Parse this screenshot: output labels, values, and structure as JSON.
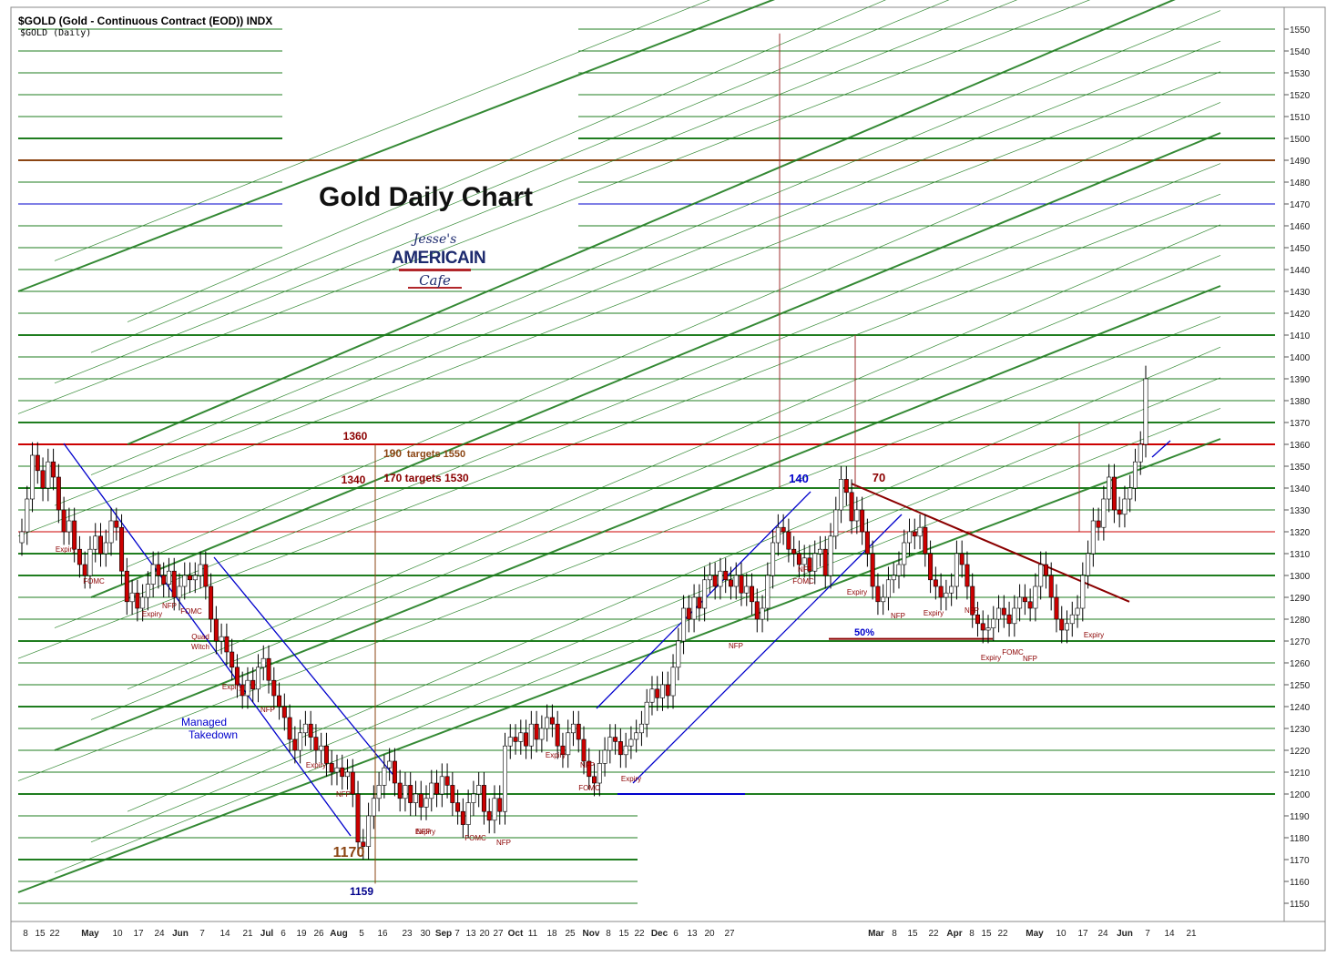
{
  "header": {
    "symbol_line": "$GOLD (Gold - Continuous Contract (EOD)) INDX",
    "sub_line": "$GOLD (Daily)"
  },
  "logo": {
    "line1": "Jesse's",
    "line2": "AMERICAIN",
    "line3": "Cafe"
  },
  "colors": {
    "up_candle": "#ffffff",
    "down_candle": "#cc0000",
    "green_lines": "#1f7d1f",
    "red_lines": "#cc0000",
    "blue_lines": "#0000cc",
    "brown_lines": "#8b4513",
    "maroon": "#8b0000"
  },
  "chart_data": {
    "type": "candlestick",
    "title": "Gold Daily Chart",
    "ylim": [
      1140,
      1560
    ],
    "yticks": [
      1150,
      1160,
      1170,
      1180,
      1190,
      1200,
      1210,
      1220,
      1230,
      1240,
      1250,
      1260,
      1270,
      1280,
      1290,
      1300,
      1310,
      1320,
      1330,
      1340,
      1350,
      1360,
      1370,
      1380,
      1390,
      1400,
      1410,
      1420,
      1430,
      1440,
      1450,
      1460,
      1470,
      1480,
      1490,
      1500,
      1510,
      1520,
      1530,
      1540,
      1550
    ],
    "xticks": [
      {
        "label": "8",
        "bold": false
      },
      {
        "label": "15",
        "bold": false
      },
      {
        "label": "22",
        "bold": false
      },
      {
        "label": "May",
        "bold": true
      },
      {
        "label": "10",
        "bold": false
      },
      {
        "label": "17",
        "bold": false
      },
      {
        "label": "24",
        "bold": false
      },
      {
        "label": "Jun",
        "bold": true
      },
      {
        "label": "7",
        "bold": false
      },
      {
        "label": "14",
        "bold": false
      },
      {
        "label": "21",
        "bold": false
      },
      {
        "label": "Jul",
        "bold": true
      },
      {
        "label": "6",
        "bold": false
      },
      {
        "label": "19",
        "bold": false
      },
      {
        "label": "26",
        "bold": false
      },
      {
        "label": "Aug",
        "bold": true
      },
      {
        "label": "5",
        "bold": false
      },
      {
        "label": "16",
        "bold": false
      },
      {
        "label": "23",
        "bold": false
      },
      {
        "label": "30",
        "bold": false
      },
      {
        "label": "Sep",
        "bold": true
      },
      {
        "label": "7",
        "bold": false
      },
      {
        "label": "13",
        "bold": false
      },
      {
        "label": "20",
        "bold": false
      },
      {
        "label": "27",
        "bold": false
      },
      {
        "label": "Oct",
        "bold": true
      },
      {
        "label": "11",
        "bold": false
      },
      {
        "label": "18",
        "bold": false
      },
      {
        "label": "25",
        "bold": false
      },
      {
        "label": "Nov",
        "bold": true
      },
      {
        "label": "8",
        "bold": false
      },
      {
        "label": "15",
        "bold": false
      },
      {
        "label": "22",
        "bold": false
      },
      {
        "label": "Dec",
        "bold": true
      },
      {
        "label": "6",
        "bold": false
      },
      {
        "label": "13",
        "bold": false
      },
      {
        "label": "20",
        "bold": false
      },
      {
        "label": "27",
        "bold": false
      },
      {
        "label": "Mar",
        "bold": true
      },
      {
        "label": "8",
        "bold": false
      },
      {
        "label": "15",
        "bold": false
      },
      {
        "label": "22",
        "bold": false
      },
      {
        "label": "Apr",
        "bold": true
      },
      {
        "label": "8",
        "bold": false
      },
      {
        "label": "15",
        "bold": false
      },
      {
        "label": "22",
        "bold": false
      },
      {
        "label": "May",
        "bold": true
      },
      {
        "label": "10",
        "bold": false
      },
      {
        "label": "17",
        "bold": false
      },
      {
        "label": "24",
        "bold": false
      },
      {
        "label": "Jun",
        "bold": true
      },
      {
        "label": "7",
        "bold": false
      },
      {
        "label": "14",
        "bold": false
      },
      {
        "label": "21",
        "bold": false
      }
    ],
    "closes": [
      1320,
      1335,
      1355,
      1348,
      1340,
      1352,
      1345,
      1330,
      1320,
      1325,
      1312,
      1305,
      1300,
      1312,
      1318,
      1310,
      1315,
      1325,
      1322,
      1302,
      1288,
      1292,
      1285,
      1290,
      1296,
      1305,
      1300,
      1296,
      1302,
      1290,
      1295,
      1300,
      1298,
      1300,
      1305,
      1295,
      1280,
      1270,
      1272,
      1265,
      1258,
      1250,
      1245,
      1252,
      1248,
      1258,
      1262,
      1252,
      1245,
      1240,
      1235,
      1225,
      1220,
      1228,
      1232,
      1226,
      1220,
      1222,
      1214,
      1210,
      1212,
      1208,
      1210,
      1200,
      1178,
      1176,
      1190,
      1198,
      1204,
      1212,
      1215,
      1205,
      1198,
      1204,
      1196,
      1200,
      1194,
      1198,
      1205,
      1200,
      1208,
      1204,
      1196,
      1192,
      1186,
      1196,
      1200,
      1204,
      1192,
      1188,
      1198,
      1192,
      1222,
      1226,
      1224,
      1228,
      1222,
      1232,
      1225,
      1230,
      1235,
      1232,
      1222,
      1218,
      1228,
      1232,
      1225,
      1215,
      1208,
      1205,
      1214,
      1220,
      1226,
      1224,
      1218,
      1222,
      1225,
      1228,
      1232,
      1242,
      1248,
      1244,
      1250,
      1245,
      1258,
      1270,
      1285,
      1280,
      1290,
      1285,
      1298,
      1300,
      1295,
      1302,
      1298,
      1295,
      1300,
      1292,
      1295,
      1288,
      1280,
      1285,
      1300,
      1315,
      1322,
      1320,
      1312,
      1310,
      1305,
      1308,
      1302,
      1310,
      1312,
      1300,
      1318,
      1330,
      1344,
      1338,
      1325,
      1330,
      1320,
      1310,
      1295,
      1288,
      1290,
      1298,
      1300,
      1305,
      1315,
      1320,
      1318,
      1322,
      1310,
      1298,
      1295,
      1290,
      1292,
      1295,
      1310,
      1305,
      1295,
      1282,
      1278,
      1275,
      1276,
      1280,
      1285,
      1282,
      1278,
      1285,
      1290,
      1288,
      1285,
      1295,
      1305,
      1300,
      1290,
      1280,
      1275,
      1278,
      1282,
      1285,
      1300,
      1310,
      1325,
      1322,
      1335,
      1345,
      1330,
      1328,
      1335,
      1340,
      1352,
      1360,
      1390
    ],
    "annotations": [
      {
        "text": "Expiry",
        "color": "#8b0000"
      },
      {
        "text": "FOMC",
        "color": "#8b0000"
      },
      {
        "text": "Expiry",
        "color": "#8b0000"
      },
      {
        "text": "NFP",
        "color": "#8b0000"
      },
      {
        "text": "FOMC",
        "color": "#8b0000"
      },
      {
        "text": "Quad",
        "color": "#8b0000"
      },
      {
        "text": "Witch",
        "color": "#8b0000"
      },
      {
        "text": "Expiry",
        "color": "#8b0000"
      },
      {
        "text": "NFP",
        "color": "#8b0000"
      },
      {
        "text": "Expiry",
        "color": "#8b0000"
      },
      {
        "text": "NFP",
        "color": "#8b0000"
      },
      {
        "text": "NFP",
        "color": "#8b0000"
      },
      {
        "text": "Expiry",
        "color": "#8b0000"
      },
      {
        "text": "FOMC",
        "color": "#8b0000"
      },
      {
        "text": "NFP",
        "color": "#8b0000"
      },
      {
        "text": "Expiry",
        "color": "#8b0000"
      },
      {
        "text": "NFP",
        "color": "#8b0000"
      },
      {
        "text": "FOMC",
        "color": "#8b0000"
      },
      {
        "text": "Expiry",
        "color": "#8b0000"
      },
      {
        "text": "NFP",
        "color": "#8b0000"
      },
      {
        "text": "NFP",
        "color": "#8b0000"
      },
      {
        "text": "FOMC",
        "color": "#8b0000"
      },
      {
        "text": "Expiry",
        "color": "#8b0000"
      },
      {
        "text": "NFP",
        "color": "#8b0000"
      },
      {
        "text": "Expiry",
        "color": "#8b0000"
      },
      {
        "text": "NFP",
        "color": "#8b0000"
      },
      {
        "text": "Expiry",
        "color": "#8b0000"
      },
      {
        "text": "FOMC",
        "color": "#8b0000"
      },
      {
        "text": "NFP",
        "color": "#8b0000"
      },
      {
        "text": "Expiry",
        "color": "#8b0000"
      },
      {
        "text": "Managed",
        "color": "#0000cc"
      },
      {
        "text": "Takedown",
        "color": "#0000cc"
      },
      {
        "text": "1360",
        "color": "#8b0000"
      },
      {
        "text": "1340",
        "color": "#8b0000"
      },
      {
        "text": "190",
        "color": "#8b4513"
      },
      {
        "text": "targets 1550",
        "color": "#8b4513"
      },
      {
        "text": "170 targets 1530",
        "color": "#8b0000"
      },
      {
        "text": "140",
        "color": "#0000cc"
      },
      {
        "text": "70",
        "color": "#8b0000"
      },
      {
        "text": "50%",
        "color": "#0000cc"
      },
      {
        "text": "1170",
        "color": "#8b4513"
      },
      {
        "text": "1159",
        "color": "#00008b"
      }
    ]
  }
}
